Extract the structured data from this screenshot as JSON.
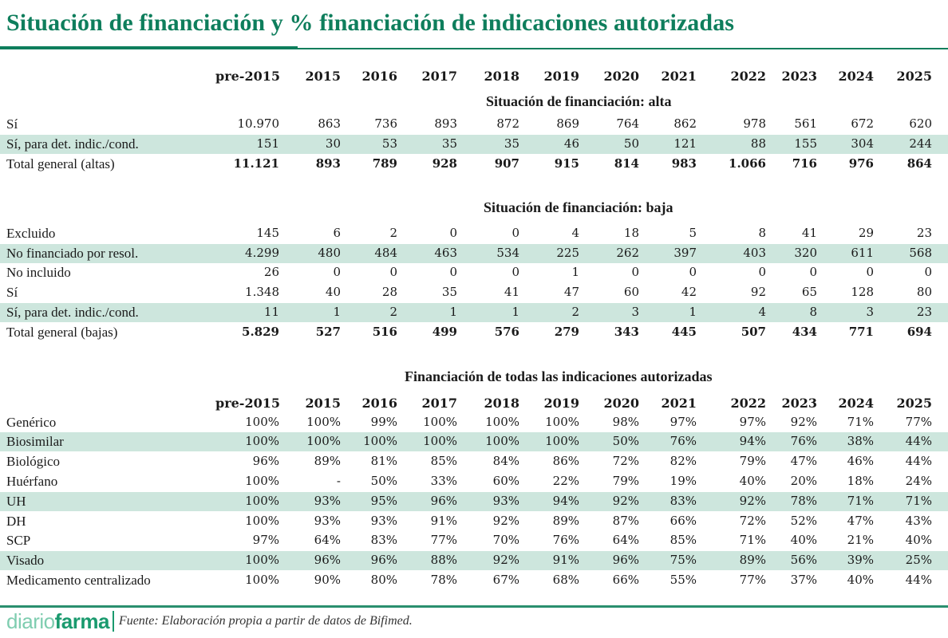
{
  "title": "Situación de financiación y % financiación de indicaciones autorizadas",
  "years": [
    "pre-2015",
    "2015",
    "2016",
    "2017",
    "2018",
    "2019",
    "2020",
    "2021",
    "2022",
    "2023",
    "2024",
    "2025"
  ],
  "section_alta": {
    "heading": "Situación de financiación: alta",
    "rows": [
      {
        "label": "Sí",
        "values": [
          "10.970",
          "863",
          "736",
          "893",
          "872",
          "869",
          "764",
          "862",
          "978",
          "561",
          "672",
          "620"
        ]
      },
      {
        "label": "Sí, para det. indic./cond.",
        "values": [
          "151",
          "30",
          "53",
          "35",
          "35",
          "46",
          "50",
          "121",
          "88",
          "155",
          "304",
          "244"
        ]
      },
      {
        "label": "Total general (altas)",
        "values": [
          "11.121",
          "893",
          "789",
          "928",
          "907",
          "915",
          "814",
          "983",
          "1.066",
          "716",
          "976",
          "864"
        ]
      }
    ]
  },
  "section_baja": {
    "heading": "Situación de financiación: baja",
    "rows": [
      {
        "label": "Excluido",
        "values": [
          "145",
          "6",
          "2",
          "0",
          "0",
          "4",
          "18",
          "5",
          "8",
          "41",
          "29",
          "23"
        ]
      },
      {
        "label": "No financiado por resol.",
        "values": [
          "4.299",
          "480",
          "484",
          "463",
          "534",
          "225",
          "262",
          "397",
          "403",
          "320",
          "611",
          "568"
        ]
      },
      {
        "label": "No incluido",
        "values": [
          "26",
          "0",
          "0",
          "0",
          "0",
          "1",
          "0",
          "0",
          "0",
          "0",
          "0",
          "0"
        ]
      },
      {
        "label": "Sí",
        "values": [
          "1.348",
          "40",
          "28",
          "35",
          "41",
          "47",
          "60",
          "42",
          "92",
          "65",
          "128",
          "80"
        ]
      },
      {
        "label": "Sí, para det. indic./cond.",
        "values": [
          "11",
          "1",
          "2",
          "1",
          "1",
          "2",
          "3",
          "1",
          "4",
          "8",
          "3",
          "23"
        ]
      },
      {
        "label": "Total general (bajas)",
        "values": [
          "5.829",
          "527",
          "516",
          "499",
          "576",
          "279",
          "343",
          "445",
          "507",
          "434",
          "771",
          "694"
        ]
      }
    ]
  },
  "section_pct": {
    "heading": "Financiación de todas las indicaciones autorizadas",
    "rows": [
      {
        "label": "Genérico",
        "values": [
          "100%",
          "100%",
          "99%",
          "100%",
          "100%",
          "100%",
          "98%",
          "97%",
          "97%",
          "92%",
          "71%",
          "77%"
        ]
      },
      {
        "label": "Biosimilar",
        "values": [
          "100%",
          "100%",
          "100%",
          "100%",
          "100%",
          "100%",
          "50%",
          "76%",
          "94%",
          "76%",
          "38%",
          "44%"
        ]
      },
      {
        "label": "Biológico",
        "values": [
          "96%",
          "89%",
          "81%",
          "85%",
          "84%",
          "86%",
          "72%",
          "82%",
          "79%",
          "47%",
          "46%",
          "44%"
        ]
      },
      {
        "label": "Huérfano",
        "values": [
          "100%",
          "-",
          "50%",
          "33%",
          "60%",
          "22%",
          "79%",
          "19%",
          "40%",
          "20%",
          "18%",
          "24%"
        ]
      },
      {
        "label": "UH",
        "values": [
          "100%",
          "93%",
          "95%",
          "96%",
          "93%",
          "94%",
          "92%",
          "83%",
          "92%",
          "78%",
          "71%",
          "71%"
        ]
      },
      {
        "label": "DH",
        "values": [
          "100%",
          "93%",
          "93%",
          "91%",
          "92%",
          "89%",
          "87%",
          "66%",
          "72%",
          "52%",
          "47%",
          "43%"
        ]
      },
      {
        "label": "SCP",
        "values": [
          "97%",
          "64%",
          "83%",
          "77%",
          "70%",
          "76%",
          "64%",
          "85%",
          "71%",
          "40%",
          "21%",
          "40%"
        ]
      },
      {
        "label": "Visado",
        "values": [
          "100%",
          "96%",
          "96%",
          "88%",
          "92%",
          "91%",
          "96%",
          "75%",
          "89%",
          "56%",
          "39%",
          "25%"
        ]
      },
      {
        "label": "Medicamento centralizado",
        "values": [
          "100%",
          "90%",
          "80%",
          "78%",
          "67%",
          "68%",
          "66%",
          "55%",
          "77%",
          "37%",
          "40%",
          "44%"
        ]
      }
    ]
  },
  "footer": {
    "logo_light": "diario",
    "logo_bold": "farma",
    "source": "Fuente: Elaboración propia a partir de datos de Bifimed."
  },
  "colors": {
    "brand_green": "#0e7e5c",
    "row_shade": "#cde6dd"
  }
}
